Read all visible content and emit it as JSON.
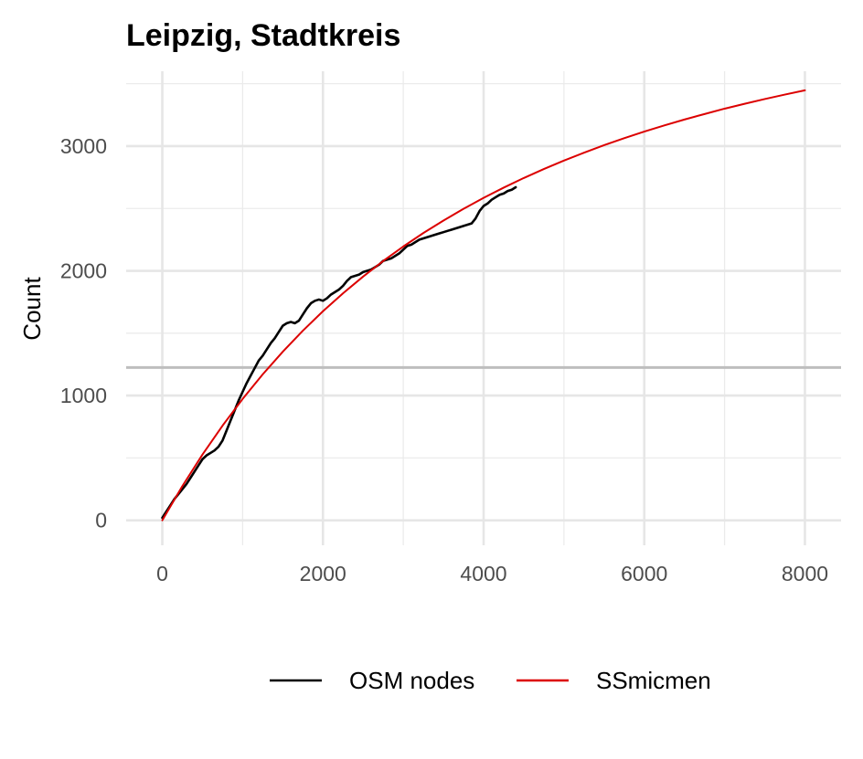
{
  "chart_data": {
    "type": "line",
    "title": "Leipzig, Stadtkreis",
    "xlabel": "",
    "ylabel": "Count",
    "xlim": [
      -450,
      8450
    ],
    "ylim": [
      -200,
      3600
    ],
    "x_ticks": [
      0,
      2000,
      4000,
      6000,
      8000
    ],
    "x_tick_labels": [
      "0",
      "2000",
      "4000",
      "6000",
      "8000"
    ],
    "x_minor_ticks": [
      1000,
      3000,
      5000,
      7000
    ],
    "y_ticks": [
      0,
      1000,
      2000,
      3000
    ],
    "y_tick_labels": [
      "0",
      "1000",
      "2000",
      "3000"
    ],
    "y_minor_ticks": [
      500,
      1500,
      2500,
      3500
    ],
    "grid": true,
    "legend_position": "bottom",
    "reference_line": {
      "orientation": "horizontal",
      "y": 1225,
      "color": "#bebebe"
    },
    "series": [
      {
        "name": "OSM nodes",
        "color": "#000000",
        "x": [
          0,
          50,
          100,
          150,
          200,
          250,
          300,
          350,
          400,
          450,
          500,
          550,
          600,
          650,
          700,
          750,
          800,
          850,
          900,
          950,
          1000,
          1050,
          1100,
          1150,
          1200,
          1250,
          1300,
          1350,
          1400,
          1450,
          1500,
          1550,
          1600,
          1650,
          1700,
          1750,
          1800,
          1850,
          1900,
          1950,
          2000,
          2050,
          2100,
          2150,
          2200,
          2250,
          2300,
          2350,
          2400,
          2450,
          2500,
          2550,
          2600,
          2650,
          2700,
          2750,
          2800,
          2850,
          2900,
          2950,
          3000,
          3050,
          3100,
          3150,
          3200,
          3250,
          3300,
          3350,
          3400,
          3450,
          3500,
          3550,
          3600,
          3650,
          3700,
          3750,
          3800,
          3850,
          3900,
          3950,
          4000,
          4050,
          4100,
          4150,
          4200,
          4250,
          4300,
          4350,
          4400
        ],
        "y": [
          20,
          70,
          120,
          170,
          210,
          250,
          290,
          340,
          390,
          440,
          490,
          520,
          540,
          560,
          590,
          640,
          720,
          800,
          880,
          960,
          1030,
          1100,
          1160,
          1220,
          1280,
          1320,
          1370,
          1420,
          1460,
          1510,
          1560,
          1580,
          1590,
          1580,
          1600,
          1650,
          1700,
          1740,
          1760,
          1770,
          1760,
          1780,
          1810,
          1830,
          1850,
          1880,
          1920,
          1950,
          1960,
          1970,
          1990,
          2000,
          2010,
          2030,
          2050,
          2080,
          2090,
          2100,
          2120,
          2140,
          2170,
          2200,
          2210,
          2230,
          2250,
          2260,
          2270,
          2280,
          2290,
          2300,
          2310,
          2320,
          2330,
          2340,
          2350,
          2360,
          2370,
          2380,
          2420,
          2480,
          2520,
          2540,
          2570,
          2590,
          2610,
          2620,
          2640,
          2650,
          2670
        ]
      },
      {
        "name": "SSmicmen",
        "color": "#dc0000",
        "x": [
          0,
          250,
          500,
          750,
          1000,
          1250,
          1500,
          1750,
          2000,
          2250,
          2500,
          2750,
          3000,
          3250,
          3500,
          3750,
          4000,
          4250,
          4500,
          4750,
          5000,
          5250,
          5500,
          5750,
          6000,
          6250,
          6500,
          6750,
          7000,
          7250,
          7500,
          7750,
          8000
        ],
        "y": [
          0,
          275,
          527,
          759,
          973,
          1170,
          1352,
          1520,
          1676,
          1820,
          1954,
          2079,
          2195,
          2303,
          2403,
          2497,
          2585,
          2667,
          2744,
          2816,
          2884,
          2947,
          3007,
          3063,
          3116,
          3166,
          3213,
          3257,
          3300,
          3339,
          3377,
          3413,
          3447
        ]
      }
    ]
  }
}
